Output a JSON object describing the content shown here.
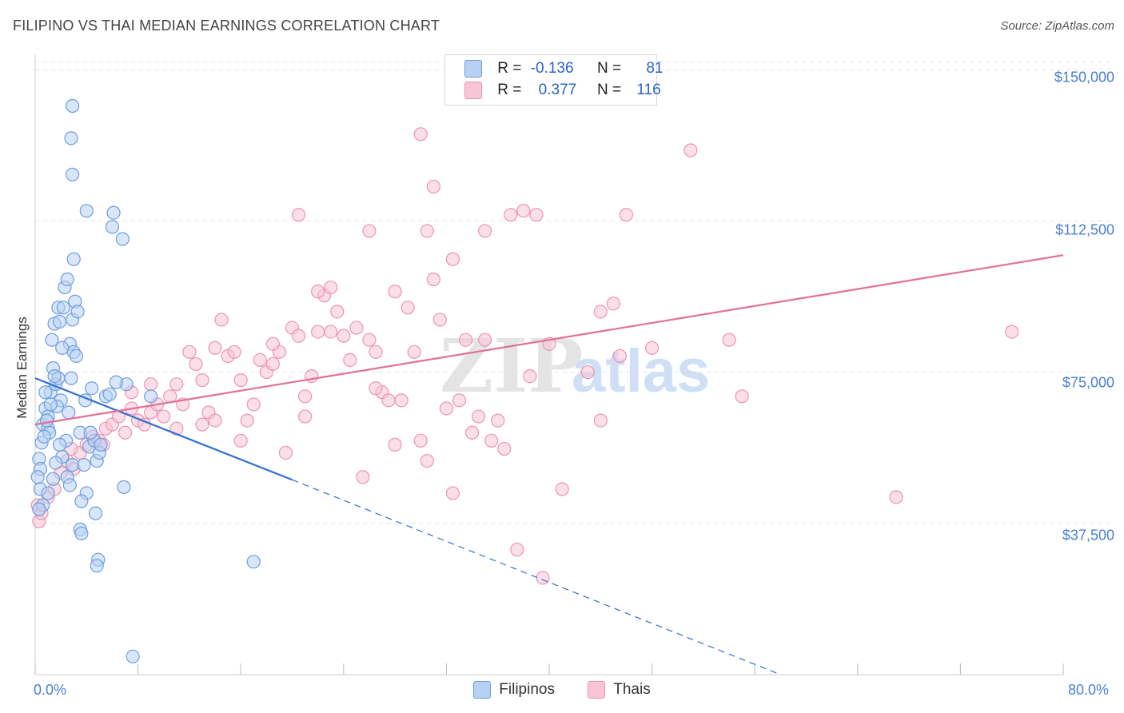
{
  "header": {
    "title": "FILIPINO VS THAI MEDIAN EARNINGS CORRELATION CHART",
    "source": "Source: ZipAtlas.com"
  },
  "legend": {
    "filipinos": {
      "r_label": "R =",
      "r_value": "-0.136",
      "n_label": "N =",
      "n_value": "81",
      "name": "Filipinos"
    },
    "thais": {
      "r_label": "R =",
      "r_value": "0.377",
      "n_label": "N =",
      "n_value": "116",
      "name": "Thais"
    }
  },
  "watermark": {
    "zip": "ZIP",
    "atlas": "atlas"
  },
  "colors": {
    "filipinos_fill": "#b8d1f3",
    "filipinos_stroke": "#6d9de0",
    "filipinos_line": "#2f6fd1",
    "thais_fill": "#f8c5d6",
    "thais_stroke": "#ec94b1",
    "thais_line": "#e0709a",
    "tick_text": "#4a7fd4",
    "grid": "#e3e3e3"
  },
  "chart_data": {
    "type": "scatter",
    "title": "FILIPINO VS THAI MEDIAN EARNINGS CORRELATION CHART",
    "xlabel": "",
    "ylabel": "Median Earnings",
    "xlim": [
      0,
      80
    ],
    "ylim": [
      0,
      152000
    ],
    "x_tick_labels": [
      "0.0%",
      "80.0%"
    ],
    "y_ticks": [
      37500,
      75000,
      112500,
      150000
    ],
    "y_tick_labels": [
      "$37,500",
      "$75,000",
      "$112,500",
      "$150,000"
    ],
    "series": [
      {
        "name": "Filipinos",
        "r": -0.136,
        "n": 81,
        "trend": {
          "x0": 0,
          "y0": 73500,
          "x1": 20,
          "y1": 48300,
          "dashed_to_x": 58,
          "dashed_to_y": 0
        },
        "points": [
          [
            0.3,
            53500
          ],
          [
            0.5,
            57500
          ],
          [
            0.4,
            51000
          ],
          [
            0.6,
            62000
          ],
          [
            0.8,
            66000
          ],
          [
            0.2,
            49000
          ],
          [
            0.4,
            46000
          ],
          [
            0.6,
            42000
          ],
          [
            0.3,
            41000
          ],
          [
            1.0,
            64000
          ],
          [
            1.2,
            70000
          ],
          [
            1.4,
            76000
          ],
          [
            1.6,
            72000
          ],
          [
            1.0,
            61000
          ],
          [
            1.8,
            73500
          ],
          [
            2.0,
            68000
          ],
          [
            1.3,
            83000
          ],
          [
            1.5,
            87000
          ],
          [
            1.8,
            91000
          ],
          [
            2.2,
            91000
          ],
          [
            2.3,
            96000
          ],
          [
            2.5,
            98000
          ],
          [
            2.7,
            82000
          ],
          [
            2.9,
            88000
          ],
          [
            3.1,
            92500
          ],
          [
            3.3,
            90000
          ],
          [
            3.0,
            80000
          ],
          [
            3.2,
            79000
          ],
          [
            2.8,
            73500
          ],
          [
            2.6,
            65000
          ],
          [
            2.4,
            58000
          ],
          [
            2.5,
            49000
          ],
          [
            2.7,
            47000
          ],
          [
            2.9,
            52000
          ],
          [
            3.5,
            60000
          ],
          [
            3.8,
            52000
          ],
          [
            4.0,
            45000
          ],
          [
            4.2,
            56500
          ],
          [
            4.6,
            58000
          ],
          [
            4.8,
            53000
          ],
          [
            5.0,
            55000
          ],
          [
            4.4,
            71000
          ],
          [
            5.5,
            69000
          ],
          [
            3.0,
            103000
          ],
          [
            2.9,
            124000
          ],
          [
            2.8,
            133000
          ],
          [
            2.9,
            141000
          ],
          [
            4.0,
            115000
          ],
          [
            6.0,
            111000
          ],
          [
            6.1,
            114500
          ],
          [
            6.8,
            108000
          ],
          [
            7.1,
            72000
          ],
          [
            5.8,
            69500
          ],
          [
            6.9,
            46500
          ],
          [
            4.7,
            40000
          ],
          [
            3.6,
            43000
          ],
          [
            3.5,
            36000
          ],
          [
            4.9,
            28500
          ],
          [
            4.8,
            27000
          ],
          [
            5.1,
            57000
          ],
          [
            17.0,
            28000
          ],
          [
            7.6,
            4500
          ],
          [
            1.1,
            60000
          ],
          [
            1.9,
            87500
          ],
          [
            2.1,
            81000
          ],
          [
            1.5,
            74000
          ],
          [
            1.7,
            66500
          ],
          [
            0.7,
            59000
          ],
          [
            0.9,
            63000
          ],
          [
            1.2,
            67000
          ],
          [
            1.4,
            48500
          ],
          [
            3.6,
            35000
          ],
          [
            4.3,
            60000
          ],
          [
            2.1,
            54000
          ],
          [
            1.9,
            57000
          ],
          [
            1.6,
            52500
          ],
          [
            0.8,
            70000
          ],
          [
            9.0,
            69000
          ],
          [
            3.9,
            68000
          ],
          [
            6.3,
            72500
          ],
          [
            1.0,
            45000
          ]
        ]
      },
      {
        "name": "Thais",
        "r": 0.377,
        "n": 116,
        "trend": {
          "x0": 0,
          "y0": 62000,
          "x1": 80,
          "y1": 104000
        },
        "points": [
          [
            0.2,
            42000
          ],
          [
            0.3,
            38000
          ],
          [
            0.5,
            40000
          ],
          [
            1.0,
            44000
          ],
          [
            1.5,
            46000
          ],
          [
            2.0,
            50000
          ],
          [
            2.5,
            53000
          ],
          [
            3.0,
            51000
          ],
          [
            3.5,
            55000
          ],
          [
            4.0,
            57000
          ],
          [
            4.5,
            59000
          ],
          [
            5.0,
            58000
          ],
          [
            5.5,
            61000
          ],
          [
            6.0,
            62000
          ],
          [
            6.5,
            64000
          ],
          [
            7.0,
            60000
          ],
          [
            7.5,
            66000
          ],
          [
            8.0,
            63000
          ],
          [
            8.5,
            62000
          ],
          [
            9.0,
            65000
          ],
          [
            9.5,
            67000
          ],
          [
            10.0,
            64000
          ],
          [
            10.5,
            69000
          ],
          [
            11.0,
            72000
          ],
          [
            11.5,
            67000
          ],
          [
            12.0,
            80000
          ],
          [
            12.5,
            77000
          ],
          [
            13.0,
            62000
          ],
          [
            13.5,
            65000
          ],
          [
            14.0,
            81000
          ],
          [
            14.5,
            88000
          ],
          [
            15.0,
            79000
          ],
          [
            15.5,
            80000
          ],
          [
            16.0,
            73000
          ],
          [
            16.5,
            63000
          ],
          [
            17.0,
            67000
          ],
          [
            17.5,
            78000
          ],
          [
            18.0,
            75000
          ],
          [
            18.5,
            77000
          ],
          [
            19.0,
            80000
          ],
          [
            19.5,
            55000
          ],
          [
            20.0,
            86000
          ],
          [
            20.5,
            84000
          ],
          [
            21.0,
            64000
          ],
          [
            21.5,
            74000
          ],
          [
            22.0,
            85000
          ],
          [
            22.5,
            94000
          ],
          [
            23.0,
            96000
          ],
          [
            23.5,
            90000
          ],
          [
            24.0,
            84000
          ],
          [
            24.5,
            78000
          ],
          [
            25.0,
            86000
          ],
          [
            25.5,
            49000
          ],
          [
            26.0,
            83000
          ],
          [
            26.5,
            80000
          ],
          [
            27.0,
            70000
          ],
          [
            27.5,
            68000
          ],
          [
            28.0,
            95000
          ],
          [
            28.5,
            68000
          ],
          [
            29.0,
            91000
          ],
          [
            29.5,
            80000
          ],
          [
            30.0,
            58000
          ],
          [
            30.5,
            53000
          ],
          [
            31.0,
            98000
          ],
          [
            31.5,
            88000
          ],
          [
            32.0,
            66000
          ],
          [
            32.5,
            45000
          ],
          [
            33.0,
            68000
          ],
          [
            33.5,
            83000
          ],
          [
            34.0,
            60000
          ],
          [
            34.5,
            64000
          ],
          [
            35.0,
            83000
          ],
          [
            35.5,
            58000
          ],
          [
            36.0,
            63000
          ],
          [
            36.5,
            56000
          ],
          [
            37.0,
            114000
          ],
          [
            37.5,
            31000
          ],
          [
            38.0,
            115000
          ],
          [
            38.5,
            74000
          ],
          [
            39.0,
            114000
          ],
          [
            39.5,
            24000
          ],
          [
            40.0,
            82000
          ],
          [
            41.0,
            46000
          ],
          [
            43.0,
            75000
          ],
          [
            44.0,
            90000
          ],
          [
            45.0,
            92000
          ],
          [
            45.5,
            79000
          ],
          [
            46.0,
            114000
          ],
          [
            48.0,
            81000
          ],
          [
            51.0,
            130000
          ],
          [
            54.0,
            83000
          ],
          [
            55.0,
            69000
          ],
          [
            76.0,
            85000
          ],
          [
            67.0,
            44000
          ],
          [
            30.5,
            110000
          ],
          [
            30.0,
            134000
          ],
          [
            31.0,
            121000
          ],
          [
            26.0,
            110000
          ],
          [
            35.0,
            110000
          ],
          [
            20.5,
            114000
          ],
          [
            22.0,
            95000
          ],
          [
            32.5,
            103000
          ],
          [
            44.0,
            63000
          ],
          [
            9.0,
            72000
          ],
          [
            5.3,
            57000
          ],
          [
            2.8,
            56000
          ],
          [
            7.5,
            70000
          ],
          [
            11.0,
            61000
          ],
          [
            16.0,
            58000
          ],
          [
            13.0,
            73000
          ],
          [
            23.0,
            85000
          ],
          [
            26.5,
            71000
          ],
          [
            18.5,
            82000
          ],
          [
            28.0,
            57000
          ],
          [
            14.0,
            63000
          ],
          [
            21.0,
            69000
          ]
        ]
      }
    ]
  }
}
